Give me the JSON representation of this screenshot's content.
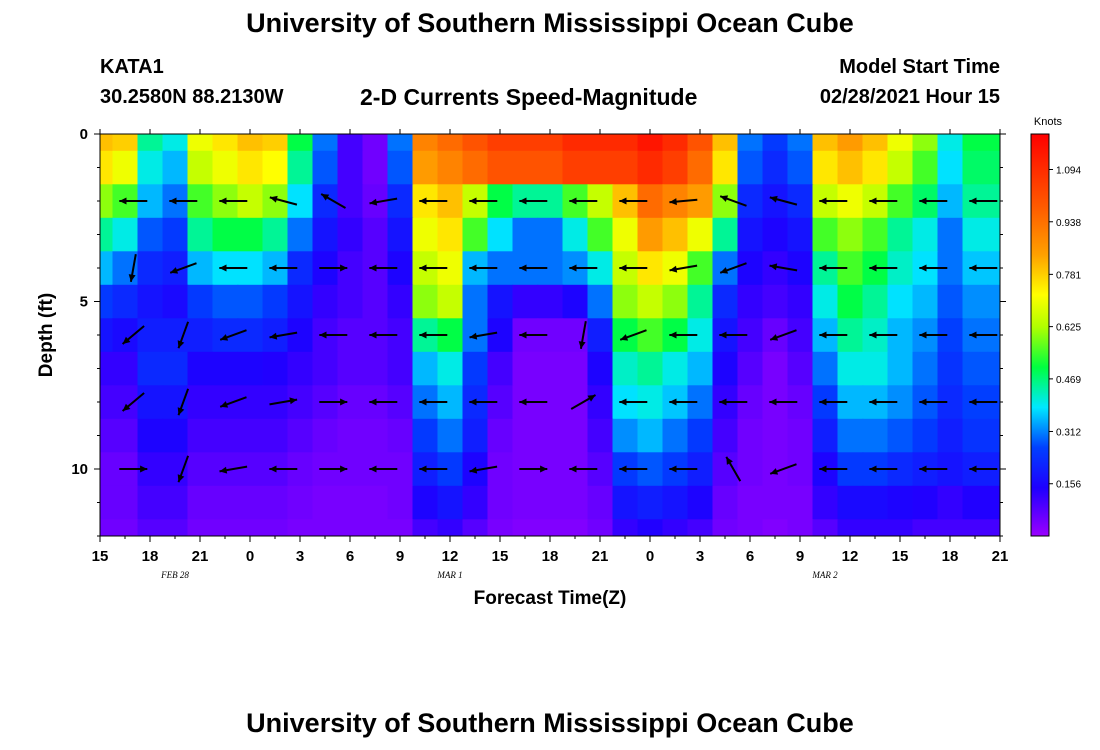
{
  "header": {
    "title": "University of Southern Mississippi Ocean Cube",
    "station_id": "KATA1",
    "station_coords": "30.2580N 88.2130W",
    "subtitle": "2-D Currents Speed-Magnitude",
    "model_start_label": "Model Start Time",
    "model_start_value": "02/28/2021 Hour 15"
  },
  "footer": {
    "title": "University of Southern Mississippi Ocean Cube"
  },
  "chart_data": {
    "type": "heatmap",
    "title": "2-D Currents Speed-Magnitude",
    "xlabel": "Forecast Time(Z)",
    "ylabel": "Depth (ft)",
    "x_hours": [
      0,
      54
    ],
    "y_depth_ft": [
      0,
      12
    ],
    "x_tick_labels": [
      "15",
      "18",
      "21",
      "0",
      "3",
      "6",
      "9",
      "12",
      "15",
      "18",
      "21",
      "0",
      "3",
      "6",
      "9",
      "12",
      "15",
      "18",
      "21"
    ],
    "x_tick_hours": [
      0,
      3,
      6,
      9,
      12,
      15,
      18,
      21,
      24,
      27,
      30,
      33,
      36,
      39,
      42,
      45,
      48,
      51,
      54
    ],
    "date_labels": [
      {
        "text": "FEB 28",
        "hour": 4.5
      },
      {
        "text": "MAR 1",
        "hour": 21
      },
      {
        "text": "MAR 2",
        "hour": 43.5
      }
    ],
    "y_tick_labels": [
      "0",
      "5",
      "10"
    ],
    "y_tick_values": [
      0,
      5,
      10
    ],
    "colorbar": {
      "units": "Knots",
      "range": [
        0,
        1.2
      ],
      "tick_labels": [
        "1.094",
        "0.938",
        "0.781",
        "0.625",
        "0.469",
        "0.312",
        "0.156"
      ],
      "tick_values": [
        1.094,
        0.938,
        0.781,
        0.625,
        0.469,
        0.312,
        0.156
      ]
    },
    "speed_grid": {
      "depths_ft": [
        0,
        1,
        2,
        3,
        4,
        5,
        6,
        7,
        8,
        9,
        10,
        11,
        12
      ],
      "hours": [
        0,
        1.5,
        3,
        4.5,
        6,
        7.5,
        9,
        10.5,
        12,
        13.5,
        15,
        16.5,
        18,
        19.5,
        21,
        22.5,
        24,
        25.5,
        27,
        28.5,
        30,
        31.5,
        33,
        34.5,
        36,
        37.5,
        39,
        40.5,
        42,
        43.5,
        45,
        46.5,
        48,
        49.5,
        51,
        52.5,
        54
      ],
      "values_knots": [
        [
          0.8,
          0.78,
          0.45,
          0.4,
          0.7,
          0.75,
          0.8,
          0.78,
          0.5,
          0.3,
          0.1,
          0.05,
          0.3,
          0.9,
          0.95,
          1.0,
          1.05,
          1.05,
          1.05,
          1.1,
          1.1,
          1.1,
          1.15,
          1.1,
          1.0,
          0.8,
          0.3,
          0.25,
          0.3,
          0.8,
          0.85,
          0.8,
          0.7,
          0.6,
          0.4,
          0.5,
          0.5
        ],
        [
          0.75,
          0.7,
          0.4,
          0.35,
          0.65,
          0.7,
          0.75,
          0.72,
          0.45,
          0.28,
          0.1,
          0.05,
          0.28,
          0.85,
          0.9,
          0.95,
          1.0,
          1.0,
          1.0,
          1.05,
          1.05,
          1.05,
          1.1,
          1.05,
          0.95,
          0.75,
          0.28,
          0.22,
          0.28,
          0.75,
          0.8,
          0.75,
          0.65,
          0.55,
          0.38,
          0.48,
          0.48
        ],
        [
          0.6,
          0.55,
          0.35,
          0.3,
          0.55,
          0.6,
          0.65,
          0.6,
          0.38,
          0.22,
          0.1,
          0.06,
          0.22,
          0.75,
          0.8,
          0.65,
          0.5,
          0.45,
          0.45,
          0.55,
          0.65,
          0.8,
          0.95,
          0.9,
          0.85,
          0.6,
          0.22,
          0.18,
          0.22,
          0.65,
          0.7,
          0.65,
          0.55,
          0.48,
          0.35,
          0.45,
          0.45
        ],
        [
          0.45,
          0.4,
          0.28,
          0.25,
          0.45,
          0.5,
          0.5,
          0.45,
          0.3,
          0.18,
          0.12,
          0.08,
          0.18,
          0.7,
          0.75,
          0.55,
          0.38,
          0.3,
          0.3,
          0.4,
          0.55,
          0.7,
          0.85,
          0.8,
          0.7,
          0.45,
          0.18,
          0.15,
          0.18,
          0.55,
          0.6,
          0.55,
          0.45,
          0.4,
          0.3,
          0.4,
          0.4
        ],
        [
          0.35,
          0.3,
          0.22,
          0.2,
          0.35,
          0.38,
          0.38,
          0.35,
          0.22,
          0.15,
          0.1,
          0.08,
          0.15,
          0.65,
          0.7,
          0.35,
          0.3,
          0.3,
          0.3,
          0.32,
          0.4,
          0.65,
          0.75,
          0.7,
          0.55,
          0.3,
          0.15,
          0.12,
          0.15,
          0.45,
          0.55,
          0.5,
          0.42,
          0.38,
          0.3,
          0.36,
          0.36
        ],
        [
          0.25,
          0.22,
          0.18,
          0.16,
          0.25,
          0.28,
          0.28,
          0.25,
          0.18,
          0.12,
          0.1,
          0.08,
          0.12,
          0.6,
          0.65,
          0.3,
          0.18,
          0.12,
          0.12,
          0.15,
          0.3,
          0.6,
          0.65,
          0.6,
          0.45,
          0.22,
          0.12,
          0.1,
          0.12,
          0.4,
          0.5,
          0.45,
          0.38,
          0.35,
          0.28,
          0.32,
          0.32
        ],
        [
          0.18,
          0.16,
          0.2,
          0.2,
          0.2,
          0.22,
          0.22,
          0.2,
          0.15,
          0.1,
          0.08,
          0.08,
          0.1,
          0.45,
          0.5,
          0.3,
          0.15,
          0.05,
          0.05,
          0.05,
          0.2,
          0.5,
          0.55,
          0.5,
          0.4,
          0.18,
          0.1,
          0.06,
          0.1,
          0.35,
          0.45,
          0.42,
          0.35,
          0.32,
          0.26,
          0.3,
          0.3
        ],
        [
          0.12,
          0.12,
          0.22,
          0.22,
          0.15,
          0.15,
          0.15,
          0.14,
          0.12,
          0.1,
          0.08,
          0.08,
          0.1,
          0.35,
          0.4,
          0.25,
          0.1,
          0.04,
          0.04,
          0.04,
          0.15,
          0.42,
          0.45,
          0.4,
          0.35,
          0.15,
          0.08,
          0.04,
          0.08,
          0.3,
          0.4,
          0.4,
          0.35,
          0.3,
          0.24,
          0.28,
          0.28
        ],
        [
          0.1,
          0.1,
          0.18,
          0.18,
          0.12,
          0.12,
          0.12,
          0.12,
          0.1,
          0.08,
          0.06,
          0.06,
          0.08,
          0.3,
          0.35,
          0.22,
          0.08,
          0.04,
          0.04,
          0.04,
          0.12,
          0.38,
          0.4,
          0.36,
          0.3,
          0.12,
          0.06,
          0.04,
          0.06,
          0.25,
          0.35,
          0.35,
          0.32,
          0.28,
          0.22,
          0.26,
          0.26
        ],
        [
          0.08,
          0.08,
          0.15,
          0.15,
          0.1,
          0.1,
          0.1,
          0.1,
          0.08,
          0.06,
          0.05,
          0.05,
          0.06,
          0.25,
          0.3,
          0.2,
          0.06,
          0.04,
          0.04,
          0.04,
          0.1,
          0.32,
          0.35,
          0.3,
          0.25,
          0.1,
          0.05,
          0.04,
          0.05,
          0.2,
          0.3,
          0.3,
          0.28,
          0.25,
          0.2,
          0.24,
          0.24
        ],
        [
          0.06,
          0.06,
          0.12,
          0.12,
          0.08,
          0.08,
          0.08,
          0.08,
          0.06,
          0.05,
          0.05,
          0.05,
          0.05,
          0.2,
          0.25,
          0.15,
          0.05,
          0.04,
          0.04,
          0.04,
          0.08,
          0.25,
          0.28,
          0.25,
          0.2,
          0.08,
          0.05,
          0.04,
          0.05,
          0.15,
          0.25,
          0.25,
          0.22,
          0.2,
          0.18,
          0.2,
          0.2
        ],
        [
          0.06,
          0.06,
          0.1,
          0.1,
          0.06,
          0.06,
          0.06,
          0.06,
          0.05,
          0.04,
          0.04,
          0.04,
          0.05,
          0.15,
          0.18,
          0.12,
          0.05,
          0.04,
          0.04,
          0.04,
          0.06,
          0.18,
          0.2,
          0.18,
          0.15,
          0.06,
          0.04,
          0.04,
          0.04,
          0.12,
          0.16,
          0.16,
          0.15,
          0.14,
          0.12,
          0.14,
          0.14
        ],
        [
          0.05,
          0.05,
          0.08,
          0.08,
          0.05,
          0.05,
          0.05,
          0.05,
          0.04,
          0.04,
          0.04,
          0.04,
          0.04,
          0.1,
          0.12,
          0.08,
          0.04,
          0.03,
          0.03,
          0.03,
          0.05,
          0.12,
          0.14,
          0.12,
          0.1,
          0.05,
          0.04,
          0.03,
          0.04,
          0.08,
          0.12,
          0.12,
          0.12,
          0.1,
          0.1,
          0.1,
          0.1
        ]
      ]
    },
    "direction_arrows_deg": {
      "hours": [
        2,
        5,
        8,
        11,
        14,
        17,
        20,
        23,
        26,
        29,
        32,
        35,
        38,
        41,
        44,
        47,
        50,
        53
      ],
      "depths_ft": [
        2,
        4,
        6,
        8,
        10
      ],
      "angles": [
        [
          180,
          180,
          180,
          165,
          150,
          190,
          180,
          180,
          180,
          180,
          180,
          185,
          160,
          165,
          180,
          180,
          180,
          180
        ],
        [
          260,
          200,
          180,
          180,
          0,
          180,
          180,
          180,
          180,
          180,
          180,
          190,
          200,
          170,
          180,
          180,
          180,
          180
        ],
        [
          220,
          250,
          200,
          190,
          180,
          180,
          180,
          190,
          180,
          260,
          200,
          180,
          180,
          200,
          180,
          180,
          180,
          180
        ],
        [
          220,
          250,
          200,
          10,
          0,
          180,
          180,
          180,
          180,
          30,
          180,
          180,
          180,
          180,
          180,
          180,
          180,
          180
        ],
        [
          0,
          250,
          190,
          180,
          0,
          180,
          180,
          190,
          0,
          180,
          180,
          180,
          120,
          200,
          180,
          180,
          180,
          180
        ]
      ]
    }
  }
}
